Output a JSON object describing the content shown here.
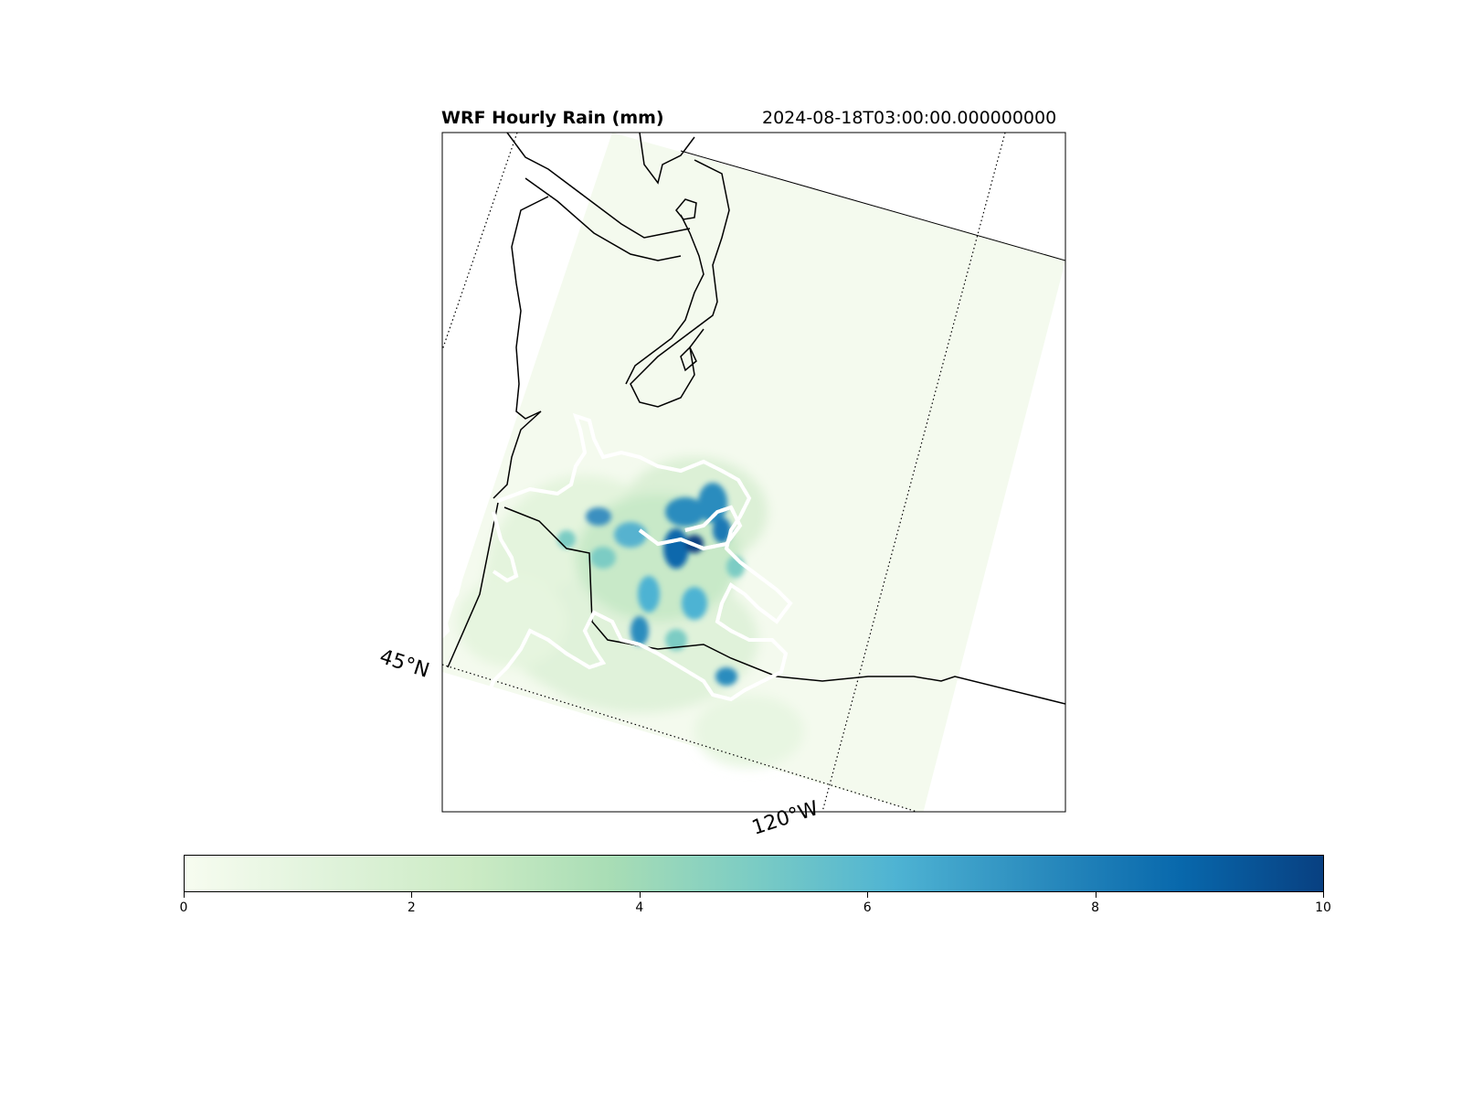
{
  "title": "WRF Hourly Rain (mm)",
  "timestamp": "2024-08-18T03:00:00.000000000",
  "gridlines": {
    "lat_label": "45°N",
    "lon_label": "120°W"
  },
  "colorbar": {
    "colormap": "GnBu",
    "min": 0,
    "max": 10,
    "ticks": [
      "0",
      "2",
      "4",
      "6",
      "8",
      "10"
    ],
    "colors": [
      "#f7fcf0",
      "#e0f3db",
      "#ccebc5",
      "#a8ddb5",
      "#7bccc4",
      "#4eb3d3",
      "#2b8cbe",
      "#0868ac",
      "#084081"
    ]
  }
}
